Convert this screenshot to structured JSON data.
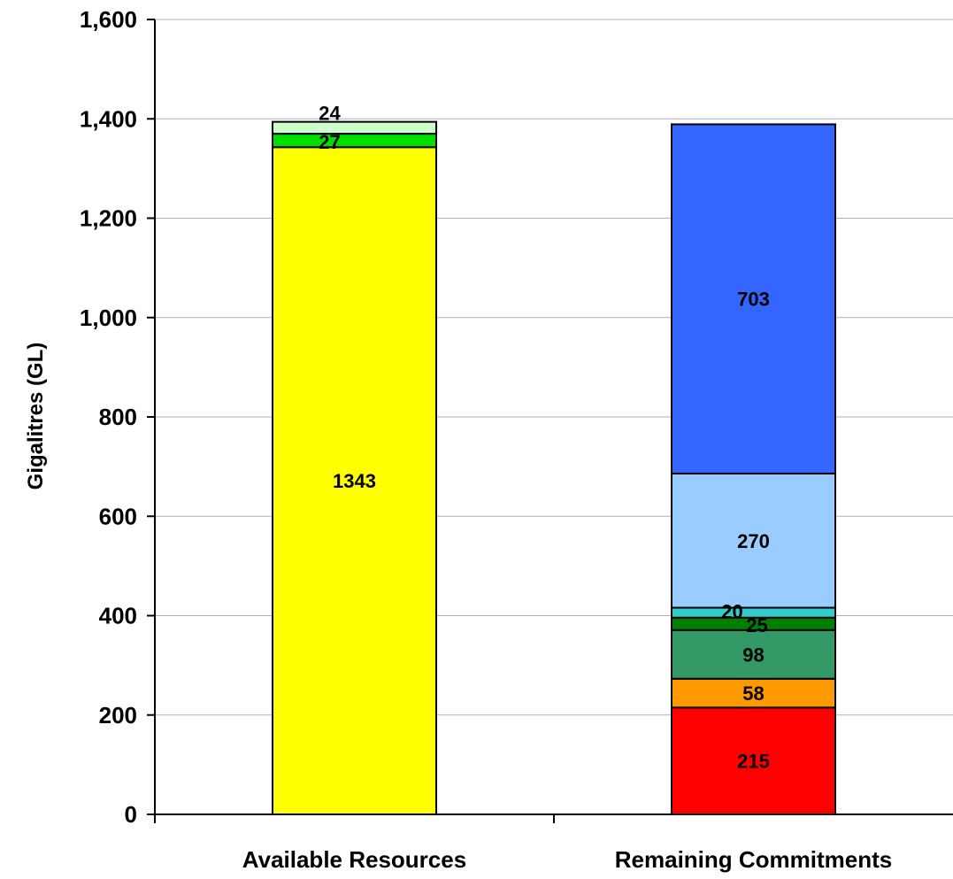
{
  "chart_data": {
    "type": "bar",
    "stacked": true,
    "title": "",
    "xlabel": "",
    "ylabel": "Gigalitres (GL)",
    "ylim": [
      0,
      1600
    ],
    "yticks": [
      0,
      200,
      400,
      600,
      800,
      1000,
      1200,
      1400,
      1600
    ],
    "ytick_labels": [
      "0",
      "200",
      "400",
      "600",
      "800",
      "1,000",
      "1,200",
      "1,400",
      "1,600"
    ],
    "grid": true,
    "legend": "none",
    "categories": [
      "Available Resources",
      "Remaining Commitments"
    ],
    "stacks": [
      {
        "category": "Available Resources",
        "segments": [
          {
            "value": 1343,
            "label": "1343",
            "color": "#FFFF00"
          },
          {
            "value": 27,
            "label": "27",
            "color": "#00E000"
          },
          {
            "value": 24,
            "label": "24",
            "color": "#CCFFCC"
          }
        ]
      },
      {
        "category": "Remaining Commitments",
        "segments": [
          {
            "value": 215,
            "label": "215",
            "color": "#FF0000"
          },
          {
            "value": 58,
            "label": "58",
            "color": "#FF9900"
          },
          {
            "value": 98,
            "label": "98",
            "color": "#339966"
          },
          {
            "value": 25,
            "label": "25",
            "color": "#008000"
          },
          {
            "value": 20,
            "label": "20",
            "color": "#33CCCC"
          },
          {
            "value": 270,
            "label": "270",
            "color": "#99CCFF"
          },
          {
            "value": 703,
            "label": "703",
            "color": "#3366FF"
          }
        ]
      }
    ]
  }
}
